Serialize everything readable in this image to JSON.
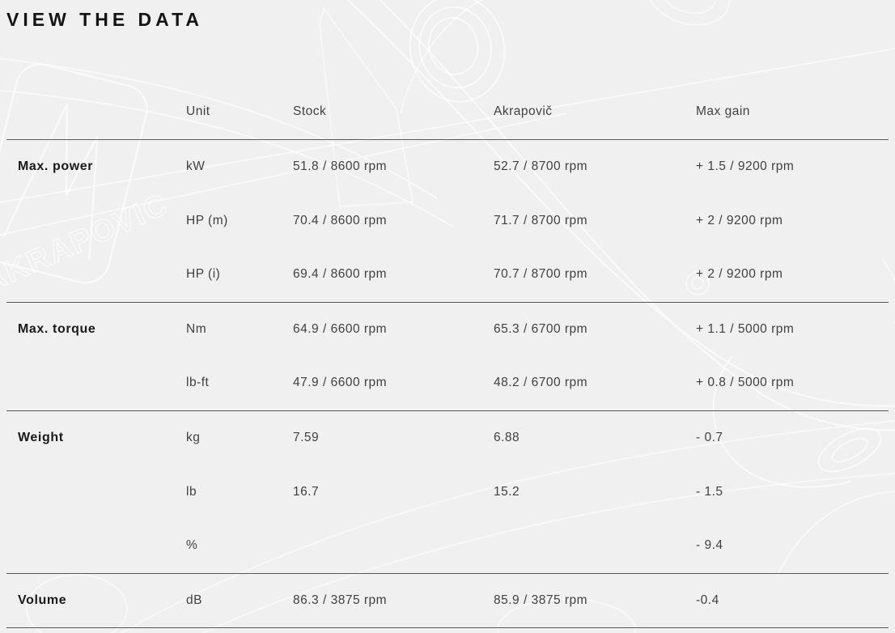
{
  "page": {
    "title": "VIEW THE DATA"
  },
  "colors": {
    "background": "#f0f0f1",
    "divider": "#55565a",
    "body_text": "#3f4040",
    "heading_text": "#141414",
    "line_art": "#ffffff"
  },
  "icons": {
    "background_art": "akrapovic-exhaust-line-art"
  },
  "table": {
    "columns": [
      "",
      "Unit",
      "Stock",
      "Akrapovič",
      "Max gain"
    ],
    "groups": [
      {
        "label": "Max. power",
        "rows": [
          [
            "kW",
            "51.8 / 8600 rpm",
            "52.7 / 8700 rpm",
            "+ 1.5 / 9200 rpm"
          ],
          [
            "HP (m)",
            "70.4 / 8600 rpm",
            "71.7 / 8700 rpm",
            "+ 2 / 9200 rpm"
          ],
          [
            "HP (i)",
            "69.4 / 8600 rpm",
            "70.7 / 8700 rpm",
            "+ 2 / 9200 rpm"
          ]
        ]
      },
      {
        "label": "Max. torque",
        "rows": [
          [
            "Nm",
            "64.9 / 6600 rpm",
            "65.3 / 6700 rpm",
            "+ 1.1 / 5000 rpm"
          ],
          [
            "lb-ft",
            "47.9 / 6600 rpm",
            "48.2 / 6700 rpm",
            "+ 0.8 / 5000 rpm"
          ]
        ]
      },
      {
        "label": "Weight",
        "rows": [
          [
            "kg",
            "7.59",
            "6.88",
            "- 0.7"
          ],
          [
            "lb",
            "16.7",
            "15.2",
            "- 1.5"
          ],
          [
            "%",
            "",
            "",
            "- 9.4"
          ]
        ]
      },
      {
        "label": "Volume",
        "rows": [
          [
            "dB",
            "86.3 / 3875 rpm",
            "85.9 / 3875 rpm",
            "-0.4"
          ]
        ]
      }
    ]
  }
}
